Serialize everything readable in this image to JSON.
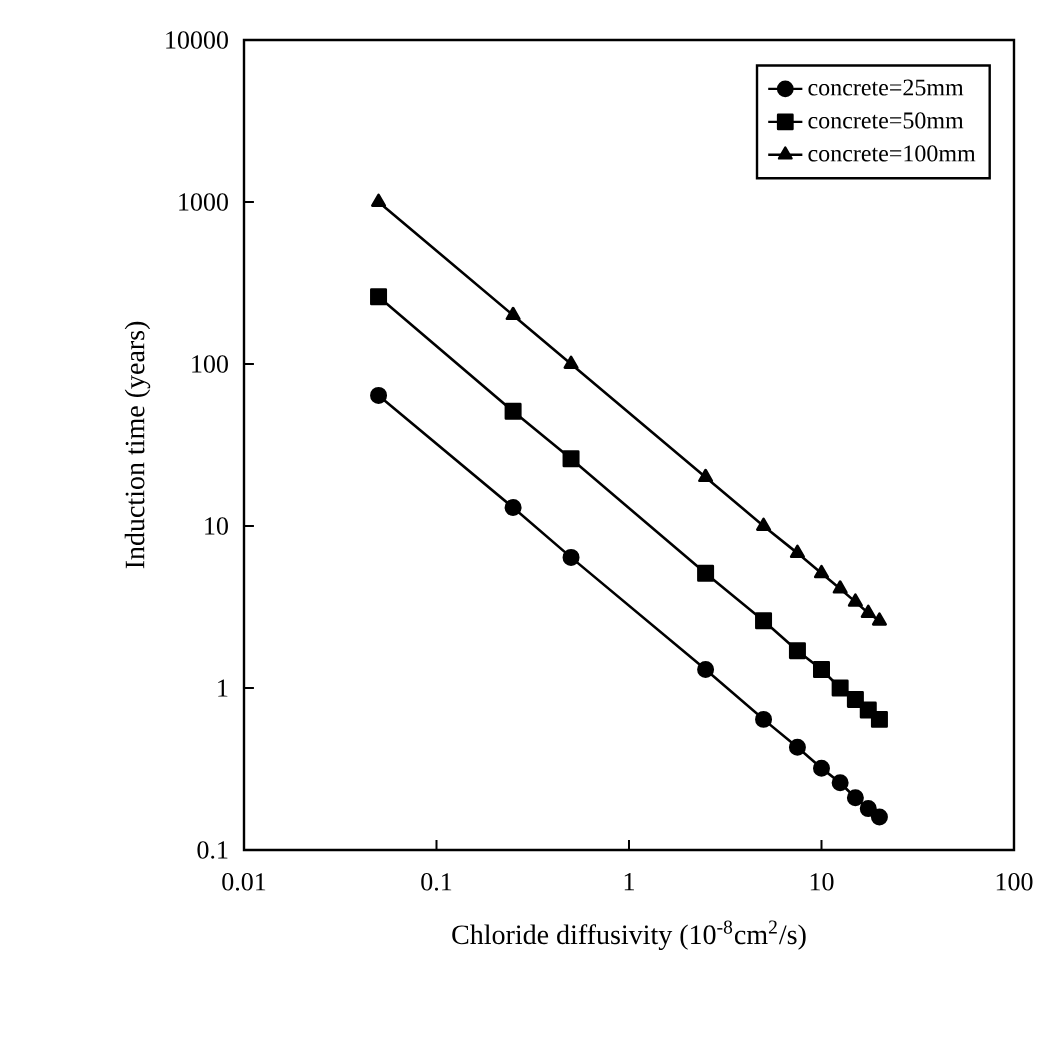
{
  "chart_data": {
    "type": "line",
    "xlabel": "Chloride diffusivity (10$^{-8}$cm$^{2}$/s)",
    "ylabel": "Induction time (years)",
    "x": [
      0.05,
      0.25,
      0.5,
      2.5,
      5,
      7.5,
      10,
      12.5,
      15,
      17.5,
      20
    ],
    "series": [
      {
        "name": "concrete=25mm",
        "color": "#000000",
        "marker": "circle",
        "values": [
          64,
          13,
          6.4,
          1.3,
          0.64,
          0.43,
          0.32,
          0.26,
          0.21,
          0.18,
          0.16
        ]
      },
      {
        "name": "concrete=50mm",
        "color": "#000000",
        "marker": "square",
        "values": [
          260,
          51,
          26,
          5.1,
          2.6,
          1.7,
          1.3,
          1.0,
          0.85,
          0.73,
          0.64
        ]
      },
      {
        "name": "concrete=100mm",
        "color": "#000000",
        "marker": "triangle",
        "values": [
          1000,
          200,
          100,
          20,
          10,
          6.8,
          5.1,
          4.1,
          3.4,
          2.9,
          2.6
        ]
      }
    ],
    "log": "xy",
    "grid": false,
    "legend": "top right",
    "line_style": "solid",
    "xlim": [
      0.01,
      100
    ],
    "ylim": [
      0.1,
      10000
    ],
    "xticks": [
      0.01,
      0.1,
      1,
      10,
      100
    ],
    "yticks": [
      0.1,
      1,
      10,
      100,
      1000,
      10000
    ]
  }
}
